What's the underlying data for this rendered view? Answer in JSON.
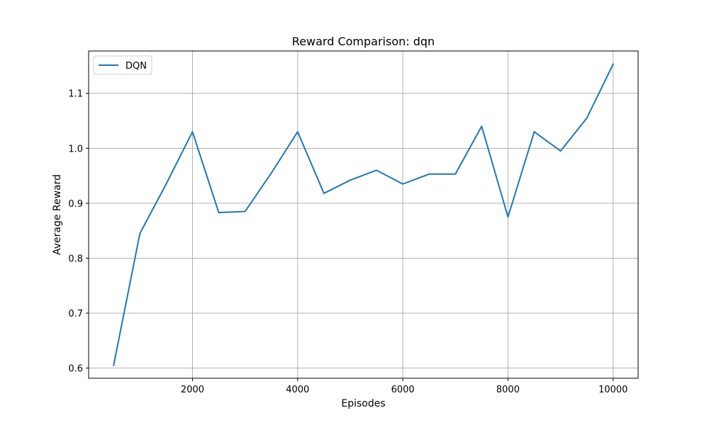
{
  "chart_data": {
    "type": "line",
    "title": "Reward Comparison: dqn",
    "xlabel": "Episodes",
    "ylabel": "Average Reward",
    "xlim": [
      25,
      10475
    ],
    "ylim": [
      0.5815,
      1.177
    ],
    "xticks": [
      2000,
      4000,
      6000,
      8000,
      10000
    ],
    "yticks": [
      0.6,
      0.7,
      0.8,
      0.9,
      1.0,
      1.1
    ],
    "xtick_labels": [
      "2000",
      "4000",
      "6000",
      "8000",
      "10000"
    ],
    "ytick_labels": [
      "0.6",
      "0.7",
      "0.8",
      "0.9",
      "1.0",
      "1.1"
    ],
    "grid": true,
    "legend_position": "top-left",
    "series": [
      {
        "name": "DQN",
        "color": "#1f77b4",
        "x": [
          500,
          1000,
          1500,
          2000,
          2500,
          3000,
          3500,
          4000,
          4500,
          5000,
          5500,
          6000,
          6500,
          7000,
          7500,
          8000,
          8500,
          9000,
          9500,
          10000
        ],
        "y": [
          0.605,
          0.845,
          0.935,
          1.03,
          0.883,
          0.885,
          0.955,
          1.03,
          0.918,
          0.942,
          0.96,
          0.935,
          0.953,
          0.953,
          1.04,
          0.875,
          1.03,
          0.995,
          1.055,
          1.153
        ]
      }
    ]
  }
}
